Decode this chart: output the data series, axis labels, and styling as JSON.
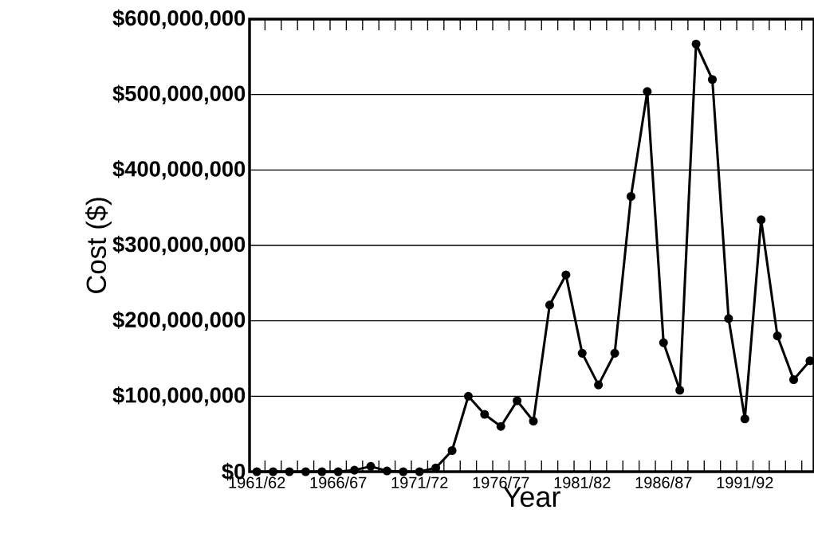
{
  "chart_data": {
    "type": "line",
    "xlabel": "Year",
    "ylabel": "Cost ($)",
    "categories": [
      "1961/62",
      null,
      null,
      null,
      null,
      "1966/67",
      null,
      null,
      null,
      null,
      "1971/72",
      null,
      null,
      null,
      null,
      "1976/77",
      null,
      null,
      null,
      null,
      "1981/82",
      null,
      null,
      null,
      null,
      "1986/87",
      null,
      null,
      null,
      null,
      "1991/92",
      null,
      null,
      null,
      null
    ],
    "series": [
      {
        "color": "#000000",
        "values": [
          0,
          0,
          0,
          0,
          0,
          0,
          2000000,
          7000000,
          1000000,
          0,
          0,
          5000000,
          28000000,
          100000000,
          76000000,
          60000000,
          94000000,
          67000000,
          221000000,
          261000000,
          157000000,
          115000000,
          157000000,
          365000000,
          504000000,
          171000000,
          108000000,
          567000000,
          520000000,
          203000000,
          70000000,
          334000000,
          180000000,
          122000000,
          147000000
        ]
      }
    ],
    "ylim": [
      0,
      600000000
    ],
    "yticks": [
      {
        "value": 0,
        "label": "$0"
      },
      {
        "value": 100000000,
        "label": "$100,000,000"
      },
      {
        "value": 200000000,
        "label": "$200,000,000"
      },
      {
        "value": 300000000,
        "label": "$300,000,000"
      },
      {
        "value": 400000000,
        "label": "$400,000,000"
      },
      {
        "value": 500000000,
        "label": "$500,000,000"
      },
      {
        "value": 600000000,
        "label": "$600,000,000"
      }
    ],
    "grid": "y",
    "marker": "circle",
    "line_style": "solid"
  }
}
